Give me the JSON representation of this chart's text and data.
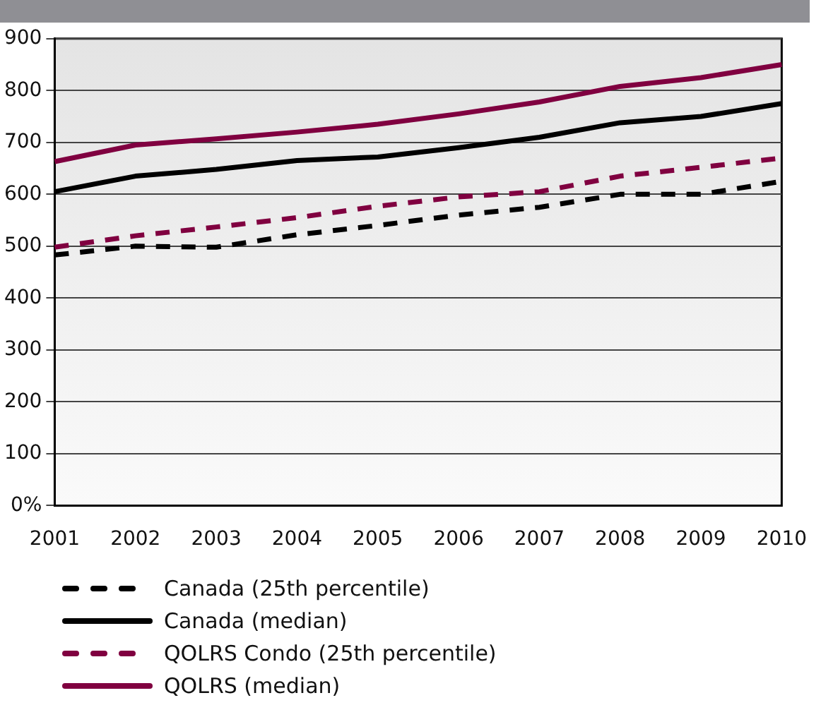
{
  "chart_data": {
    "type": "line",
    "categories": [
      "2001",
      "2002",
      "2003",
      "2004",
      "2005",
      "2006",
      "2007",
      "2008",
      "2009",
      "2010"
    ],
    "series": [
      {
        "name": "Canada (25th percentile)",
        "color": "#000000",
        "line_style": "dashed",
        "values": [
          483,
          500,
          498,
          522,
          540,
          560,
          575,
          600,
          600,
          625
        ]
      },
      {
        "name": "Canada (median)",
        "color": "#000000",
        "line_style": "solid",
        "values": [
          605,
          635,
          648,
          665,
          672,
          690,
          710,
          738,
          750,
          775
        ]
      },
      {
        "name": "QOLRS Condo (25th percentile)",
        "color": "#800040",
        "line_style": "dashed",
        "values": [
          498,
          520,
          537,
          555,
          577,
          595,
          605,
          635,
          652,
          670
        ]
      },
      {
        "name": "QOLRS (median)",
        "color": "#800040",
        "line_style": "solid",
        "values": [
          663,
          695,
          707,
          720,
          735,
          755,
          778,
          808,
          825,
          850
        ]
      }
    ],
    "ylim": [
      0,
      900
    ],
    "yticks": [
      {
        "value": 0,
        "label": "0%"
      },
      100,
      200,
      300,
      400,
      500,
      600,
      700,
      800,
      900
    ],
    "grid": "y",
    "legend": "bottom",
    "marker": "none"
  }
}
